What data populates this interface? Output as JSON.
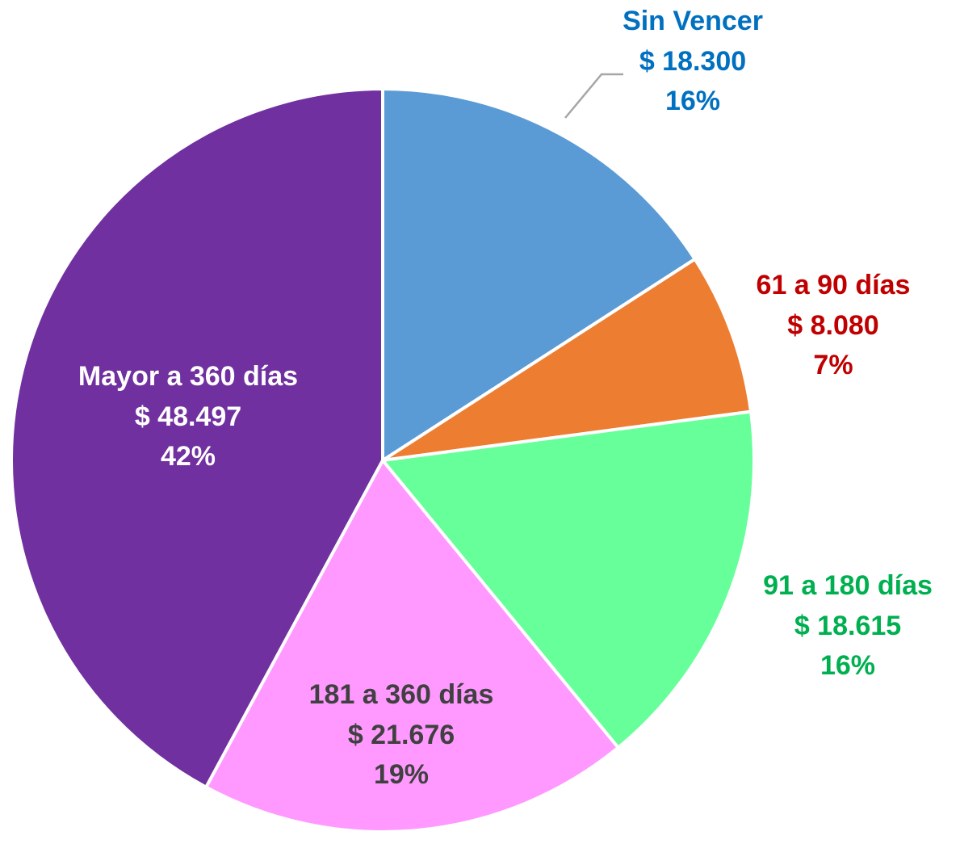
{
  "chart_data": {
    "type": "pie",
    "categories": [
      "Sin Vencer",
      "61 a 90 días",
      "91 a 180 días",
      "181 a 360 días",
      "Mayor a 360 días"
    ],
    "values": [
      18300,
      8080,
      18615,
      21676,
      48497
    ],
    "value_labels": [
      "$ 18.300",
      "$ 8.080",
      "$ 18.615",
      "$ 21.676",
      "$ 48.497"
    ],
    "percents": [
      16,
      7,
      16,
      19,
      42
    ],
    "percent_labels": [
      "16%",
      "7%",
      "16%",
      "19%",
      "42%"
    ],
    "colors": [
      "#5b9bd5",
      "#ed7d31",
      "#66ff99",
      "#ff99ff",
      "#7030a0"
    ],
    "label_colors": [
      "#0070c0",
      "#c00000",
      "#00b050",
      "#404040",
      "#ffffff"
    ]
  }
}
